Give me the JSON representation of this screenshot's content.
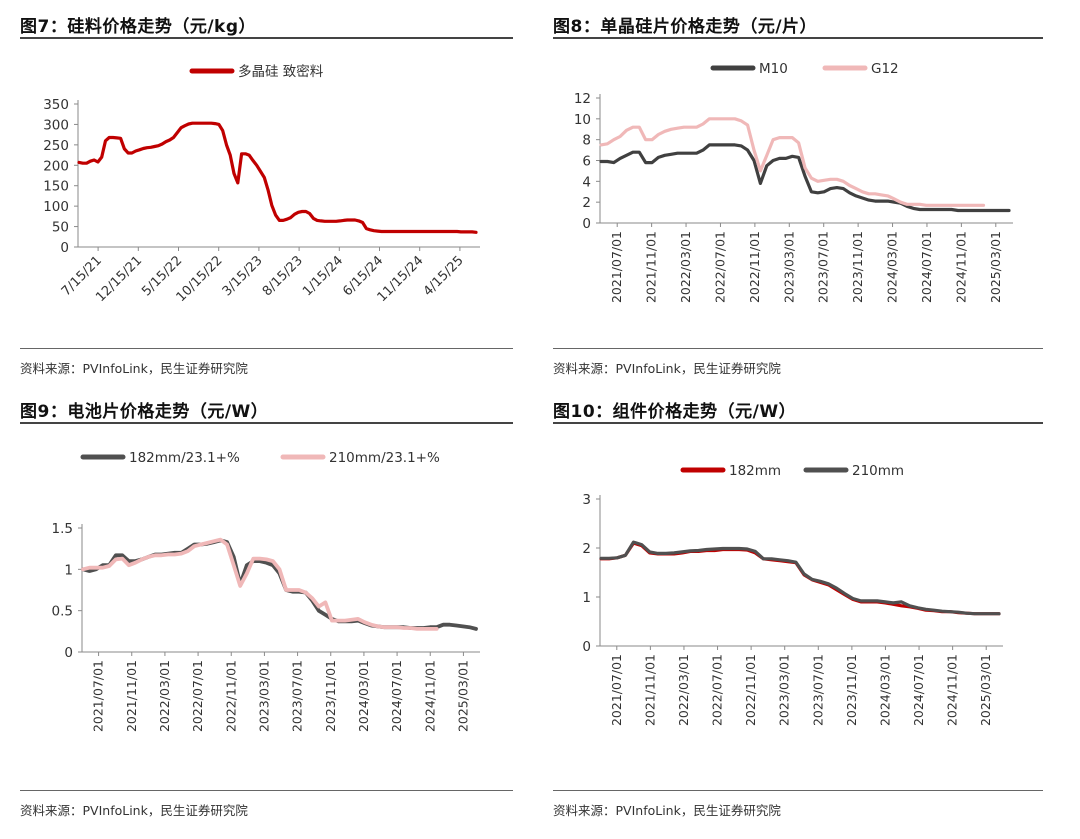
{
  "panels": [
    {
      "title": "图7：硅料价格走势（元/kg）",
      "source": "资料来源：PVInfoLink，民生证券研究院",
      "chart_data": {
        "type": "line",
        "title": "图7：硅料价格走势（元/kg）",
        "xlabel": "",
        "ylabel": "",
        "ylim": [
          0,
          350
        ],
        "yticks": [
          0,
          50,
          100,
          150,
          200,
          250,
          300,
          350
        ],
        "x_tick_labels": [
          "7/15/21",
          "12/15/21",
          "5/15/22",
          "10/15/22",
          "3/15/23",
          "8/15/23",
          "1/15/24",
          "6/15/24",
          "11/15/24",
          "4/15/25"
        ],
        "colors": [
          "#c00000"
        ],
        "series": [
          {
            "name": "多晶硅 致密料",
            "values": [
              207,
              205,
              205,
              210,
              213,
              208,
              220,
              260,
              268,
              268,
              267,
              266,
              240,
              230,
              230,
              235,
              238,
              241,
              243,
              244,
              246,
              248,
              252,
              258,
              262,
              268,
              280,
              292,
              297,
              301,
              303,
              303,
              303,
              303,
              303,
              303,
              302,
              300,
              285,
              250,
              225,
              180,
              157,
              228,
              228,
              225,
              212,
              200,
              185,
              170,
              140,
              102,
              78,
              65,
              65,
              68,
              72,
              80,
              85,
              87,
              87,
              82,
              70,
              65,
              64,
              63,
              63,
              63,
              63,
              64,
              65,
              66,
              66,
              66,
              64,
              60,
              45,
              42,
              40,
              39,
              38,
              38,
              38,
              38,
              38,
              38,
              38,
              38,
              38,
              38,
              38,
              38,
              38,
              38,
              38,
              38,
              38,
              38,
              38,
              38,
              38,
              37,
              37,
              37,
              37,
              36
            ]
          }
        ]
      }
    },
    {
      "title": "图8：单晶硅片价格走势（元/片）",
      "source": "资料来源：PVInfoLink，民生证券研究院",
      "chart_data": {
        "type": "line",
        "title": "图8：单晶硅片价格走势（元/片）",
        "xlabel": "",
        "ylabel": "",
        "ylim": [
          0,
          12
        ],
        "yticks": [
          0,
          2,
          4,
          6,
          8,
          10,
          12
        ],
        "x_tick_labels": [
          "2021/07/01",
          "2021/11/01",
          "2022/03/01",
          "2022/07/01",
          "2022/11/01",
          "2023/03/01",
          "2023/07/01",
          "2023/11/01",
          "2024/03/01",
          "2024/07/01",
          "2024/11/01",
          "2025/03/01"
        ],
        "colors": [
          "#404040",
          "#f0b8b8"
        ],
        "series": [
          {
            "name": "M10",
            "values": [
              5.9,
              5.9,
              5.8,
              6.2,
              6.5,
              6.8,
              6.8,
              5.8,
              5.8,
              6.3,
              6.5,
              6.6,
              6.7,
              6.7,
              6.7,
              6.7,
              7.0,
              7.5,
              7.5,
              7.5,
              7.5,
              7.5,
              7.4,
              7.0,
              6.0,
              3.8,
              5.5,
              6.0,
              6.2,
              6.2,
              6.4,
              6.3,
              4.5,
              3.0,
              2.9,
              3.0,
              3.3,
              3.4,
              3.3,
              2.9,
              2.6,
              2.4,
              2.2,
              2.1,
              2.1,
              2.1,
              2.0,
              1.9,
              1.6,
              1.4,
              1.3,
              1.3,
              1.3,
              1.3,
              1.3,
              1.3,
              1.2,
              1.2,
              1.2,
              1.2,
              1.2,
              1.2,
              1.2,
              1.2,
              1.2
            ]
          },
          {
            "name": "G12",
            "values": [
              7.5,
              7.6,
              8.0,
              8.3,
              8.9,
              9.2,
              9.2,
              8.0,
              8.0,
              8.5,
              8.8,
              9.0,
              9.1,
              9.2,
              9.2,
              9.2,
              9.5,
              10.0,
              10.0,
              10.0,
              10.0,
              10.0,
              9.8,
              9.4,
              7.0,
              5.0,
              6.5,
              8.0,
              8.2,
              8.2,
              8.2,
              7.7,
              5.3,
              4.3,
              4.0,
              4.1,
              4.2,
              4.2,
              4.0,
              3.6,
              3.3,
              3.0,
              2.8,
              2.8,
              2.7,
              2.6,
              2.3,
              2.0,
              1.8,
              1.8,
              1.8,
              1.7,
              1.7,
              1.7,
              1.7,
              1.7,
              1.7,
              1.7,
              1.7,
              1.7,
              1.7
            ]
          }
        ]
      }
    },
    {
      "title": "图9：电池片价格走势（元/W）",
      "source": "资料来源：PVInfoLink，民生证券研究院",
      "chart_data": {
        "type": "line",
        "title": "图9：电池片价格走势（元/W）",
        "xlabel": "",
        "ylabel": "",
        "ylim": [
          0,
          1.5
        ],
        "yticks": [
          0,
          0.5,
          1,
          1.5
        ],
        "x_tick_labels": [
          "2021/07/01",
          "2021/11/01",
          "2022/03/01",
          "2022/07/01",
          "2022/11/01",
          "2023/03/01",
          "2023/07/01",
          "2023/11/01",
          "2024/03/01",
          "2024/07/01",
          "2024/11/01",
          "2025/03/01"
        ],
        "colors": [
          "#505050",
          "#f0b8b8"
        ],
        "series": [
          {
            "name": "182mm/23.1+%",
            "values": [
              1.0,
              0.98,
              1.0,
              1.05,
              1.05,
              1.17,
              1.17,
              1.1,
              1.1,
              1.12,
              1.15,
              1.18,
              1.18,
              1.19,
              1.2,
              1.2,
              1.25,
              1.3,
              1.3,
              1.31,
              1.33,
              1.35,
              1.33,
              1.15,
              0.82,
              1.05,
              1.1,
              1.1,
              1.08,
              1.05,
              0.95,
              0.75,
              0.73,
              0.73,
              0.72,
              0.62,
              0.5,
              0.45,
              0.4,
              0.37,
              0.37,
              0.37,
              0.38,
              0.35,
              0.32,
              0.31,
              0.3,
              0.3,
              0.3,
              0.3,
              0.29,
              0.29,
              0.29,
              0.3,
              0.3,
              0.33,
              0.33,
              0.32,
              0.31,
              0.3,
              0.28
            ]
          },
          {
            "name": "210mm/23.1+%",
            "values": [
              1.0,
              1.02,
              1.02,
              1.02,
              1.04,
              1.12,
              1.13,
              1.05,
              1.08,
              1.12,
              1.15,
              1.17,
              1.17,
              1.18,
              1.18,
              1.19,
              1.22,
              1.28,
              1.3,
              1.32,
              1.34,
              1.36,
              1.3,
              1.05,
              0.8,
              0.95,
              1.13,
              1.13,
              1.12,
              1.1,
              1.0,
              0.75,
              0.75,
              0.75,
              0.72,
              0.65,
              0.55,
              0.6,
              0.38,
              0.38,
              0.38,
              0.39,
              0.4,
              0.36,
              0.33,
              0.31,
              0.3,
              0.3,
              0.3,
              0.29,
              0.29,
              0.28,
              0.28,
              0.28,
              0.28
            ]
          }
        ]
      }
    },
    {
      "title": "图10：组件价格走势（元/W）",
      "source": "资料来源：PVInfoLink，民生证券研究院",
      "chart_data": {
        "type": "line",
        "title": "图10：组件价格走势（元/W）",
        "xlabel": "",
        "ylabel": "",
        "ylim": [
          0,
          3
        ],
        "yticks": [
          0,
          1,
          2,
          3
        ],
        "x_tick_labels": [
          "2021/07/01",
          "2021/11/01",
          "2022/03/01",
          "2022/07/01",
          "2022/11/01",
          "2023/03/01",
          "2023/07/01",
          "2023/11/01",
          "2024/03/01",
          "2024/07/01",
          "2024/11/01",
          "2025/03/01"
        ],
        "colors": [
          "#c00000",
          "#505050"
        ],
        "series": [
          {
            "name": "182mm",
            "values": [
              1.78,
              1.78,
              1.8,
              1.85,
              2.1,
              2.05,
              1.9,
              1.88,
              1.88,
              1.88,
              1.9,
              1.93,
              1.93,
              1.95,
              1.95,
              1.97,
              1.97,
              1.97,
              1.96,
              1.9,
              1.78,
              1.76,
              1.74,
              1.72,
              1.7,
              1.45,
              1.35,
              1.3,
              1.25,
              1.15,
              1.05,
              0.95,
              0.9,
              0.9,
              0.9,
              0.88,
              0.85,
              0.82,
              0.8,
              0.77,
              0.73,
              0.72,
              0.7,
              0.7,
              0.68,
              0.67,
              0.66,
              0.66,
              0.66,
              0.66
            ]
          },
          {
            "name": "210mm",
            "values": [
              1.79,
              1.79,
              1.8,
              1.85,
              2.12,
              2.07,
              1.92,
              1.89,
              1.89,
              1.9,
              1.92,
              1.94,
              1.95,
              1.97,
              1.98,
              1.99,
              1.99,
              1.99,
              1.98,
              1.93,
              1.78,
              1.78,
              1.76,
              1.74,
              1.71,
              1.47,
              1.36,
              1.32,
              1.27,
              1.18,
              1.07,
              0.97,
              0.92,
              0.92,
              0.92,
              0.9,
              0.88,
              0.9,
              0.82,
              0.78,
              0.75,
              0.73,
              0.71,
              0.7,
              0.69,
              0.67,
              0.66,
              0.66,
              0.66,
              0.66
            ]
          }
        ]
      }
    }
  ]
}
